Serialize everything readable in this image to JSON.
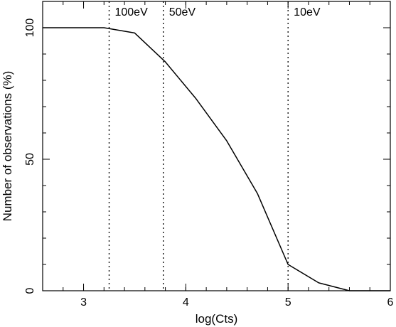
{
  "chart_data": {
    "type": "line",
    "title": "",
    "xlabel": "log(Cts)",
    "ylabel": "Number of observations (%)",
    "xlim": [
      2.6,
      6.0
    ],
    "ylim": [
      0,
      110
    ],
    "x_ticks": [
      3,
      4,
      5,
      6
    ],
    "x_tick_labels": [
      "3",
      "4",
      "5",
      "6"
    ],
    "x_minor_tick_step": 0.2,
    "y_ticks": [
      0,
      50,
      100
    ],
    "y_tick_labels": [
      "0",
      "50",
      "100"
    ],
    "y_minor_tick_step": 10,
    "grid": false,
    "series": [
      {
        "x": [
          2.6,
          3.2,
          3.5,
          3.8,
          4.1,
          4.4,
          4.7,
          5.0,
          5.3,
          5.6,
          6.0
        ],
        "y": [
          100,
          100,
          98,
          87,
          73,
          57,
          37,
          10,
          3,
          0,
          0
        ]
      }
    ],
    "annotations": [
      {
        "x": 3.25,
        "label": "100eV"
      },
      {
        "x": 3.78,
        "label": "50eV"
      },
      {
        "x": 5.0,
        "label": "10eV"
      }
    ]
  }
}
